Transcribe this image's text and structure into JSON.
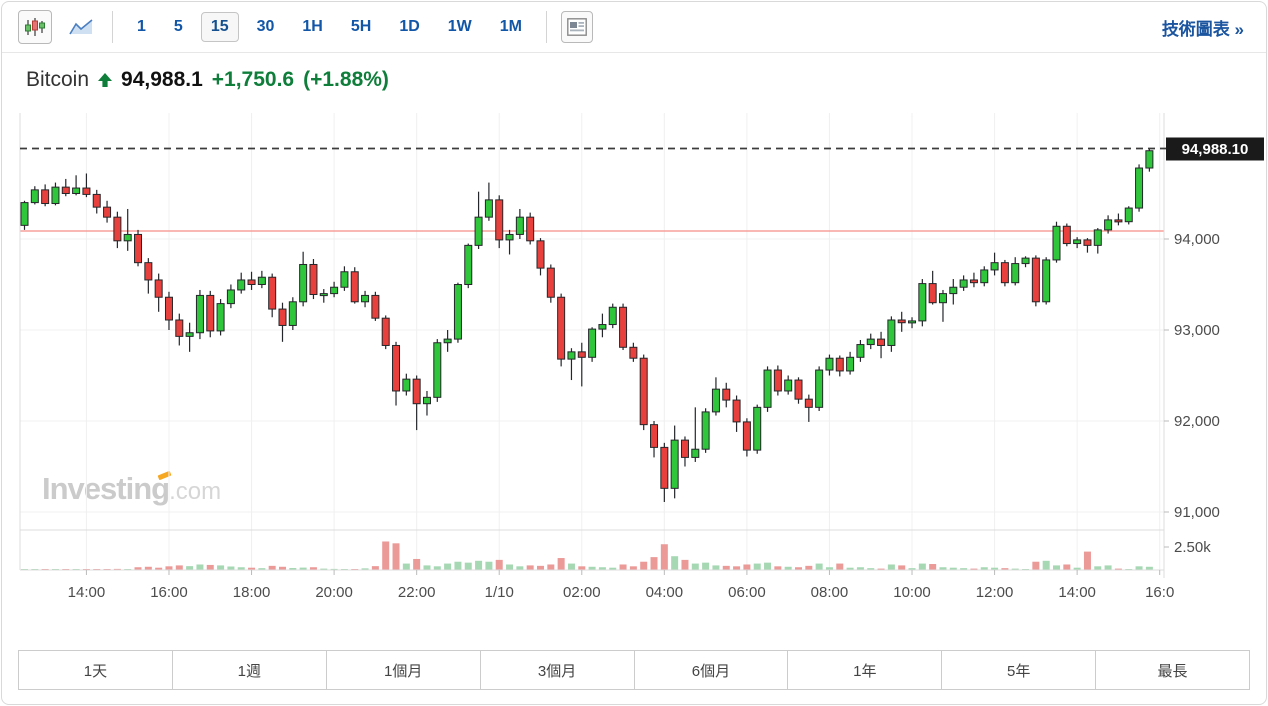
{
  "toolbar": {
    "chart_types": [
      {
        "name": "candlestick-chart",
        "selected": true
      },
      {
        "name": "area-chart",
        "selected": false
      }
    ],
    "intervals": [
      "1",
      "5",
      "15",
      "30",
      "1H",
      "5H",
      "1D",
      "1W",
      "1M"
    ],
    "selected_interval": "15",
    "tech_link_label": "技術圖表 »"
  },
  "header": {
    "symbol": "Bitcoin",
    "direction": "up",
    "price": "94,988.1",
    "change": "+1,750.6",
    "change_pct": "(+1.88%)"
  },
  "watermark": {
    "text": "Investing",
    "suffix": ".com"
  },
  "ranges": [
    "1天",
    "1週",
    "1個月",
    "3個月",
    "6個月",
    "1年",
    "5年",
    "最長"
  ],
  "colors": {
    "up": "#2fc63c",
    "down": "#e8403c",
    "candle_border": "#24262a",
    "vol_up": "#a6d8b4",
    "vol_down": "#eb9a98",
    "red_line": "#f58e86",
    "dashed_line": "#3c3c3c",
    "grid": "#f0f0f0",
    "frame": "#dcdcdc",
    "tick": "#bbbbbb",
    "axis_text": "#4c4c4c",
    "flag_bg": "#1a1a1a",
    "flag_text": "#ffffff",
    "title_green": "#0e7e3a",
    "link_blue": "#1b55a0"
  },
  "chart_data": {
    "type": "candlestick",
    "symbol": "Bitcoin",
    "interval": "15m",
    "start_time": "12:30",
    "interval_min": 15,
    "last_price": 94988.1,
    "last_price_label": "94,988.10",
    "prev_close_line": 94088,
    "ylim": [
      90800,
      95450
    ],
    "grid": true,
    "price_ticks": [
      {
        "label": "94,000",
        "value": 94000
      },
      {
        "label": "93,000",
        "value": 93000
      },
      {
        "label": "92,000",
        "value": 92000
      },
      {
        "label": "91,000",
        "value": 91000
      }
    ],
    "volume_tick": {
      "label": "2.50k",
      "value": 2500
    },
    "volume_max": 3200,
    "time_ticks": [
      {
        "label": "14:00",
        "i": 6
      },
      {
        "label": "16:00",
        "i": 14
      },
      {
        "label": "18:00",
        "i": 22
      },
      {
        "label": "20:00",
        "i": 30
      },
      {
        "label": "22:00",
        "i": 38
      },
      {
        "label": "1/10",
        "i": 46
      },
      {
        "label": "02:00",
        "i": 54
      },
      {
        "label": "04:00",
        "i": 62
      },
      {
        "label": "06:00",
        "i": 70
      },
      {
        "label": "08:00",
        "i": 78
      },
      {
        "label": "10:00",
        "i": 86
      },
      {
        "label": "12:00",
        "i": 94
      },
      {
        "label": "14:00",
        "i": 102
      },
      {
        "label": "16:0",
        "i": 110
      }
    ],
    "candles": [
      [
        94150,
        94420,
        94100,
        94400,
        60
      ],
      [
        94400,
        94580,
        94380,
        94540,
        50
      ],
      [
        94540,
        94600,
        94360,
        94390,
        55
      ],
      [
        94390,
        94620,
        94370,
        94570,
        50
      ],
      [
        94570,
        94660,
        94470,
        94500,
        45
      ],
      [
        94500,
        94700,
        94480,
        94560,
        40
      ],
      [
        94560,
        94720,
        94460,
        94490,
        50
      ],
      [
        94490,
        94540,
        94280,
        94350,
        80
      ],
      [
        94350,
        94420,
        94180,
        94240,
        70
      ],
      [
        94240,
        94300,
        93900,
        93980,
        120
      ],
      [
        93980,
        94330,
        93870,
        94050,
        90
      ],
      [
        94050,
        94100,
        93700,
        93740,
        300
      ],
      [
        93740,
        93790,
        93400,
        93550,
        350
      ],
      [
        93550,
        93620,
        93200,
        93360,
        250
      ],
      [
        93360,
        93420,
        93000,
        93110,
        400
      ],
      [
        93110,
        93180,
        92830,
        92930,
        500
      ],
      [
        92930,
        93080,
        92760,
        92970,
        420
      ],
      [
        92970,
        93440,
        92900,
        93380,
        600
      ],
      [
        93380,
        93430,
        92920,
        92990,
        550
      ],
      [
        92990,
        93340,
        92940,
        93290,
        500
      ],
      [
        93290,
        93500,
        93240,
        93440,
        380
      ],
      [
        93440,
        93630,
        93400,
        93550,
        300
      ],
      [
        93550,
        93640,
        93440,
        93500,
        250
      ],
      [
        93500,
        93650,
        93460,
        93580,
        200
      ],
      [
        93580,
        93620,
        93140,
        93230,
        450
      ],
      [
        93230,
        93300,
        92870,
        93050,
        350
      ],
      [
        93050,
        93360,
        93000,
        93310,
        220
      ],
      [
        93310,
        93860,
        93260,
        93720,
        260
      ],
      [
        93720,
        93780,
        93340,
        93390,
        300
      ],
      [
        93390,
        93450,
        93300,
        93400,
        150
      ],
      [
        93400,
        93530,
        93360,
        93470,
        120
      ],
      [
        93470,
        93700,
        93430,
        93640,
        100
      ],
      [
        93640,
        93690,
        93290,
        93310,
        90
      ],
      [
        93310,
        93430,
        93250,
        93380,
        180
      ],
      [
        93380,
        93420,
        93100,
        93130,
        420
      ],
      [
        93130,
        93160,
        92790,
        92830,
        3100
      ],
      [
        92830,
        92870,
        92170,
        92330,
        2900
      ],
      [
        92330,
        92520,
        92280,
        92460,
        700
      ],
      [
        92460,
        92500,
        91900,
        92190,
        1200
      ],
      [
        92190,
        92330,
        92060,
        92260,
        500
      ],
      [
        92260,
        92900,
        92210,
        92860,
        400
      ],
      [
        92860,
        93000,
        92760,
        92900,
        700
      ],
      [
        92900,
        93520,
        92860,
        93500,
        900
      ],
      [
        93500,
        93950,
        93460,
        93930,
        800
      ],
      [
        93930,
        94520,
        93890,
        94240,
        1000
      ],
      [
        94240,
        94620,
        94200,
        94430,
        900
      ],
      [
        94430,
        94480,
        93900,
        93990,
        1100
      ],
      [
        93990,
        94100,
        93830,
        94050,
        600
      ],
      [
        94050,
        94330,
        94000,
        94240,
        400
      ],
      [
        94240,
        94290,
        93940,
        93980,
        500
      ],
      [
        93980,
        94010,
        93600,
        93680,
        450
      ],
      [
        93680,
        93720,
        93300,
        93360,
        600
      ],
      [
        93360,
        93400,
        92600,
        92680,
        1300
      ],
      [
        92680,
        92800,
        92450,
        92760,
        700
      ],
      [
        92760,
        92860,
        92380,
        92700,
        400
      ],
      [
        92700,
        93030,
        92650,
        93010,
        350
      ],
      [
        93010,
        93180,
        92920,
        93060,
        300
      ],
      [
        93060,
        93290,
        93020,
        93250,
        250
      ],
      [
        93250,
        93290,
        92780,
        92810,
        600
      ],
      [
        92810,
        92860,
        92650,
        92690,
        400
      ],
      [
        92690,
        92730,
        91900,
        91960,
        900
      ],
      [
        91960,
        92000,
        91600,
        91710,
        1400
      ],
      [
        91710,
        91760,
        91110,
        91260,
        2800
      ],
      [
        91260,
        91950,
        91150,
        91790,
        1500
      ],
      [
        91790,
        91830,
        91500,
        91600,
        1100
      ],
      [
        91600,
        92150,
        91550,
        91690,
        700
      ],
      [
        91690,
        92140,
        91650,
        92100,
        800
      ],
      [
        92100,
        92480,
        92060,
        92350,
        500
      ],
      [
        92350,
        92420,
        92150,
        92230,
        450
      ],
      [
        92230,
        92280,
        91880,
        91990,
        400
      ],
      [
        91990,
        92030,
        91610,
        91680,
        600
      ],
      [
        91680,
        92180,
        91640,
        92150,
        700
      ],
      [
        92150,
        92600,
        92100,
        92560,
        800
      ],
      [
        92560,
        92610,
        92280,
        92330,
        400
      ],
      [
        92330,
        92500,
        92290,
        92450,
        350
      ],
      [
        92450,
        92480,
        92190,
        92240,
        300
      ],
      [
        92240,
        92290,
        91990,
        92150,
        450
      ],
      [
        92150,
        92600,
        92110,
        92560,
        700
      ],
      [
        92560,
        92730,
        92500,
        92690,
        300
      ],
      [
        92690,
        92720,
        92490,
        92550,
        700
      ],
      [
        92550,
        92760,
        92510,
        92700,
        250
      ],
      [
        92700,
        92890,
        92650,
        92840,
        300
      ],
      [
        92840,
        92960,
        92790,
        92900,
        200
      ],
      [
        92900,
        92980,
        92690,
        92830,
        150
      ],
      [
        92830,
        93150,
        92760,
        93110,
        600
      ],
      [
        93110,
        93200,
        92980,
        93080,
        500
      ],
      [
        93080,
        93140,
        93020,
        93100,
        200
      ],
      [
        93100,
        93560,
        93040,
        93510,
        700
      ],
      [
        93510,
        93650,
        93280,
        93300,
        650
      ],
      [
        93300,
        93440,
        93090,
        93400,
        300
      ],
      [
        93400,
        93560,
        93280,
        93470,
        250
      ],
      [
        93470,
        93600,
        93430,
        93550,
        200
      ],
      [
        93550,
        93630,
        93470,
        93520,
        150
      ],
      [
        93520,
        93700,
        93480,
        93660,
        300
      ],
      [
        93660,
        93850,
        93600,
        93740,
        250
      ],
      [
        93740,
        93770,
        93480,
        93520,
        200
      ],
      [
        93520,
        93800,
        93490,
        93730,
        150
      ],
      [
        93730,
        93810,
        93690,
        93790,
        100
      ],
      [
        93790,
        93820,
        93260,
        93310,
        900
      ],
      [
        93310,
        93800,
        93280,
        93770,
        1000
      ],
      [
        93770,
        94190,
        93740,
        94140,
        500
      ],
      [
        94140,
        94170,
        93920,
        93950,
        600
      ],
      [
        93950,
        94020,
        93900,
        93990,
        250
      ],
      [
        93990,
        94010,
        93850,
        93930,
        2000
      ],
      [
        93930,
        94120,
        93840,
        94100,
        400
      ],
      [
        94100,
        94260,
        94060,
        94210,
        500
      ],
      [
        94210,
        94280,
        94150,
        94190,
        150
      ],
      [
        94190,
        94360,
        94160,
        94340,
        100
      ],
      [
        94340,
        94820,
        94300,
        94780,
        400
      ],
      [
        94780,
        94990,
        94740,
        94970,
        350
      ]
    ]
  }
}
